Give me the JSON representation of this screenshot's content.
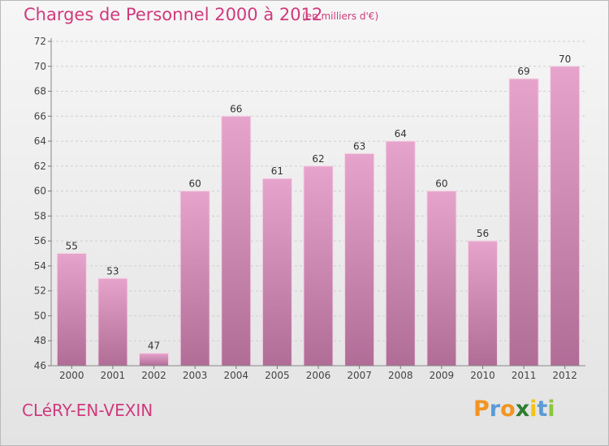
{
  "header": {
    "title": "Charges de Personnel 2000 à 2012",
    "unit_note": "(en milliers d'€)"
  },
  "footer": {
    "town": "CLéRY-EN-VEXIN",
    "logo_letters": [
      "P",
      "r",
      "o",
      "x",
      "i",
      "t",
      "i"
    ]
  },
  "colors": {
    "bar_top": "#e6a4cc",
    "bar_bottom": "#b06d96",
    "text_accent": "#d03a7d",
    "logo": [
      "#f29422",
      "#5b9bd5",
      "#f29422",
      "#2e7d32",
      "#f2c318",
      "#5b9bd5",
      "#8cc63f"
    ]
  },
  "chart_data": {
    "type": "bar",
    "title": "Charges de Personnel 2000 à 2012",
    "subtitle": "(en milliers d'€)",
    "xlabel": "",
    "ylabel": "",
    "categories": [
      "2000",
      "2001",
      "2002",
      "2003",
      "2004",
      "2005",
      "2006",
      "2007",
      "2008",
      "2009",
      "2010",
      "2011",
      "2012"
    ],
    "values": [
      55,
      53,
      47,
      60,
      66,
      61,
      62,
      63,
      64,
      60,
      56,
      69,
      70
    ],
    "ylim": [
      46,
      72
    ],
    "yticks": [
      46,
      48,
      50,
      52,
      54,
      56,
      58,
      60,
      62,
      64,
      66,
      68,
      70,
      72
    ],
    "grid": true,
    "data_labels": true
  }
}
